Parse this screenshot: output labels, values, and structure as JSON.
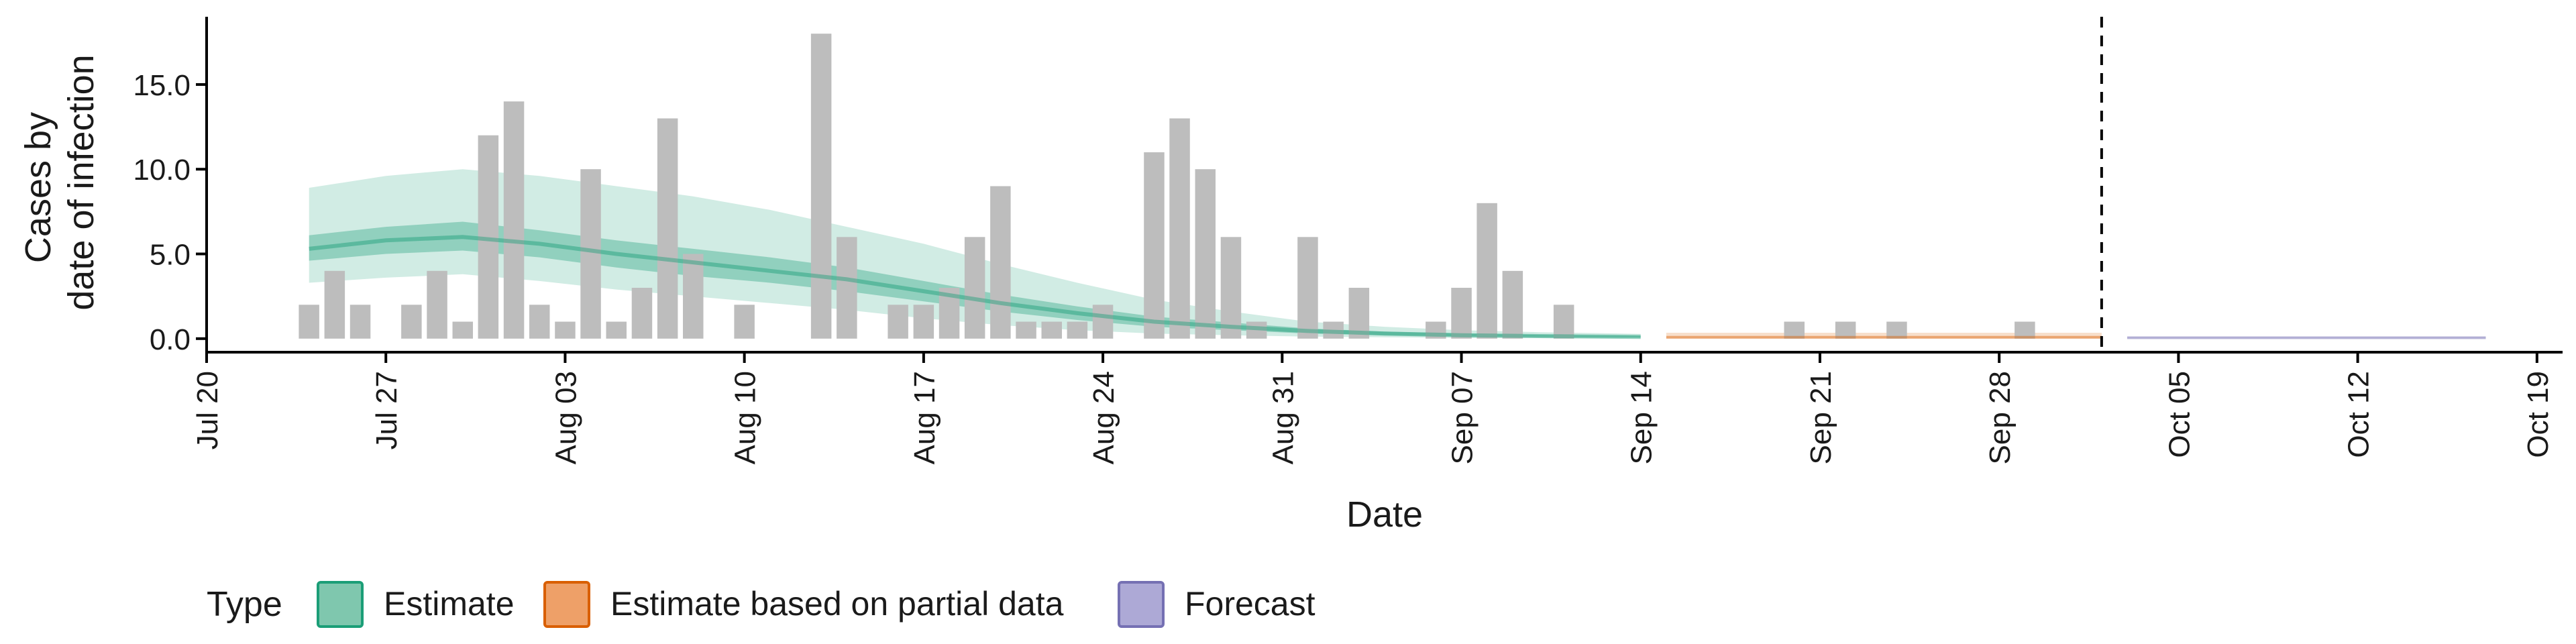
{
  "chart_data": {
    "type": "bar",
    "xlabel": "Date",
    "ylabel_lines": [
      "Cases by",
      "date of infection"
    ],
    "ylim": [
      -0.8,
      18.8
    ],
    "y_ticks": [
      0,
      5,
      10,
      15
    ],
    "y_tick_labels": [
      "0.0",
      "5.0",
      "10.0",
      "15.0"
    ],
    "x_range": [
      "2020-07-20",
      "2020-10-20"
    ],
    "x_ticks": [
      {
        "date": "2020-07-20",
        "label": "Jul 20"
      },
      {
        "date": "2020-07-27",
        "label": "Jul 27"
      },
      {
        "date": "2020-08-03",
        "label": "Aug 03"
      },
      {
        "date": "2020-08-10",
        "label": "Aug 10"
      },
      {
        "date": "2020-08-17",
        "label": "Aug 17"
      },
      {
        "date": "2020-08-24",
        "label": "Aug 24"
      },
      {
        "date": "2020-08-31",
        "label": "Aug 31"
      },
      {
        "date": "2020-09-07",
        "label": "Sep 07"
      },
      {
        "date": "2020-09-14",
        "label": "Sep 14"
      },
      {
        "date": "2020-09-21",
        "label": "Sep 21"
      },
      {
        "date": "2020-09-28",
        "label": "Sep 28"
      },
      {
        "date": "2020-10-05",
        "label": "Oct 05"
      },
      {
        "date": "2020-10-12",
        "label": "Oct 12"
      },
      {
        "date": "2020-10-19",
        "label": "Oct 19"
      }
    ],
    "forecast_line_date": "2020-10-02",
    "observed_cases": {
      "start_date": "2020-07-24",
      "values": [
        2,
        4,
        2,
        0,
        2,
        4,
        1,
        12,
        14,
        2,
        1,
        10,
        1,
        3,
        13,
        5,
        0,
        2,
        0,
        0,
        18,
        6,
        0,
        2,
        2,
        3,
        6,
        9,
        1,
        1,
        1,
        2,
        0,
        11,
        13,
        10,
        6,
        1,
        0,
        6,
        1,
        3,
        0,
        0,
        1,
        3,
        8,
        4,
        0,
        2,
        0,
        0,
        0,
        0,
        0,
        0,
        0,
        0,
        1,
        0,
        1,
        0,
        1,
        0,
        0,
        0,
        0,
        1,
        0,
        0,
        0
      ]
    },
    "series": [
      {
        "name": "Estimate",
        "color": "#1b9e77",
        "x": [
          "2020-07-24",
          "2020-07-27",
          "2020-07-30",
          "2020-08-02",
          "2020-08-05",
          "2020-08-08",
          "2020-08-11",
          "2020-08-14",
          "2020-08-17",
          "2020-08-20",
          "2020-08-23",
          "2020-08-26",
          "2020-08-29",
          "2020-09-01",
          "2020-09-04",
          "2020-09-07",
          "2020-09-10",
          "2020-09-14"
        ],
        "median": [
          5.3,
          5.8,
          6.0,
          5.6,
          5.0,
          4.5,
          4.0,
          3.5,
          2.8,
          2.1,
          1.5,
          1.0,
          0.7,
          0.45,
          0.3,
          0.2,
          0.15,
          0.1
        ],
        "lower_50": [
          4.6,
          5.0,
          5.2,
          4.8,
          4.2,
          3.7,
          3.3,
          2.8,
          2.2,
          1.6,
          1.1,
          0.7,
          0.5,
          0.3,
          0.2,
          0.14,
          0.1,
          0.07
        ],
        "upper_50": [
          6.1,
          6.6,
          6.9,
          6.4,
          5.8,
          5.3,
          4.8,
          4.2,
          3.4,
          2.6,
          1.9,
          1.3,
          0.95,
          0.6,
          0.42,
          0.3,
          0.22,
          0.15
        ],
        "lower_90": [
          3.3,
          3.6,
          3.8,
          3.4,
          2.9,
          2.5,
          2.1,
          1.7,
          1.2,
          0.8,
          0.5,
          0.3,
          0.2,
          0.12,
          0.08,
          0.05,
          0.04,
          0.03
        ],
        "upper_90": [
          8.9,
          9.6,
          10.0,
          9.6,
          9.0,
          8.4,
          7.6,
          6.6,
          5.6,
          4.4,
          3.3,
          2.3,
          1.6,
          1.0,
          0.7,
          0.5,
          0.38,
          0.28
        ]
      },
      {
        "name": "Estimate based on partial data",
        "color": "#d95f02",
        "x": [
          "2020-09-15",
          "2020-10-02"
        ],
        "median": [
          0.08,
          0.08
        ],
        "lower_90": [
          0.0,
          0.0
        ],
        "upper_90": [
          0.35,
          0.35
        ]
      },
      {
        "name": "Forecast",
        "color": "#7570b3",
        "x": [
          "2020-10-03",
          "2020-10-17"
        ],
        "median": [
          0.05,
          0.05
        ],
        "lower_90": [
          0.0,
          0.0
        ],
        "upper_90": [
          0.12,
          0.12
        ]
      }
    ],
    "legend": {
      "title": "Type",
      "position": "bottom",
      "items": [
        {
          "label": "Estimate",
          "fill": "#7fc7ae",
          "stroke": "#1b9e77"
        },
        {
          "label": "Estimate based on partial data",
          "fill": "#eea068",
          "stroke": "#d95f02"
        },
        {
          "label": "Forecast",
          "fill": "#ada9d6",
          "stroke": "#7570b3"
        }
      ]
    },
    "colors": {
      "observed_bar": "#bdbdbd",
      "axis": "#000000",
      "forecast_line": "#000000"
    }
  }
}
